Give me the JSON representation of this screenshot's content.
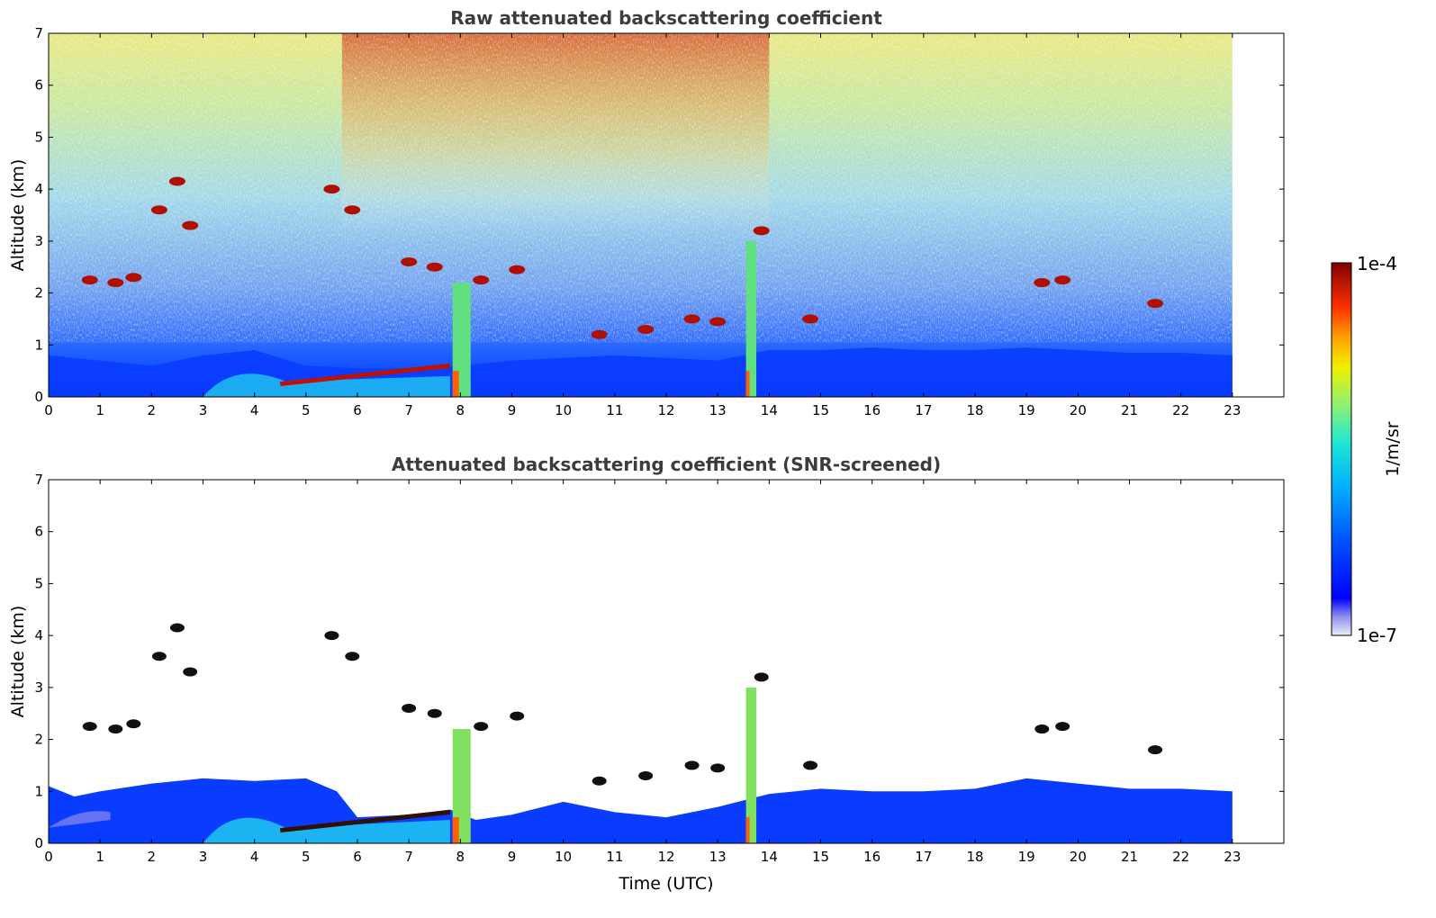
{
  "chart_data": [
    {
      "type": "heatmap",
      "title": "Raw attenuated backscattering coefficient",
      "xlabel": "",
      "ylabel": "Altitude (km)",
      "xlim": [
        0,
        24
      ],
      "ylim": [
        0,
        7
      ],
      "xticks": [
        "0",
        "1",
        "2",
        "3",
        "4",
        "5",
        "6",
        "7",
        "8",
        "9",
        "10",
        "11",
        "12",
        "13",
        "14",
        "15",
        "16",
        "17",
        "18",
        "19",
        "20",
        "21",
        "22",
        "23"
      ],
      "yticks": [
        "0",
        "1",
        "2",
        "3",
        "4",
        "5",
        "6",
        "7"
      ],
      "data_end_hour": 23,
      "layers": [
        {
          "name": "boundary-layer",
          "hours": [
            0,
            1,
            2,
            3,
            4,
            5,
            6,
            7,
            8,
            9,
            10,
            11,
            12,
            13,
            14,
            15,
            16,
            17,
            18,
            19,
            20,
            21,
            22,
            23
          ],
          "top_km": [
            0.8,
            0.7,
            0.6,
            0.8,
            0.9,
            0.6,
            0.55,
            0.55,
            0.6,
            0.7,
            0.75,
            0.8,
            0.75,
            0.7,
            0.9,
            0.9,
            0.95,
            0.9,
            0.9,
            0.95,
            0.9,
            0.85,
            0.85,
            0.8
          ]
        },
        {
          "name": "aerosol-layer",
          "t_start": 4.5,
          "t_end": 7.8,
          "alt_start_km": 0.25,
          "alt_end_km": 0.6
        },
        {
          "name": "precipitation-1",
          "t_start": 7.85,
          "t_end": 8.2,
          "alt_top_km": 2.2
        },
        {
          "name": "precipitation-2",
          "t_start": 13.55,
          "t_end": 13.75,
          "alt_top_km": 3.0
        }
      ],
      "cloud_features": [
        {
          "t": 2.5,
          "alt_km": 4.15
        },
        {
          "t": 2.15,
          "alt_km": 3.6
        },
        {
          "t": 2.75,
          "alt_km": 3.3
        },
        {
          "t": 0.8,
          "alt_km": 2.25
        },
        {
          "t": 1.3,
          "alt_km": 2.2
        },
        {
          "t": 1.65,
          "alt_km": 2.3
        },
        {
          "t": 5.5,
          "alt_km": 4.0
        },
        {
          "t": 5.9,
          "alt_km": 3.6
        },
        {
          "t": 7.0,
          "alt_km": 2.6
        },
        {
          "t": 7.5,
          "alt_km": 2.5
        },
        {
          "t": 8.4,
          "alt_km": 2.25
        },
        {
          "t": 9.1,
          "alt_km": 2.45
        },
        {
          "t": 10.7,
          "alt_km": 1.2
        },
        {
          "t": 11.6,
          "alt_km": 1.3
        },
        {
          "t": 12.5,
          "alt_km": 1.5
        },
        {
          "t": 13.0,
          "alt_km": 1.45
        },
        {
          "t": 13.85,
          "alt_km": 3.2
        },
        {
          "t": 14.8,
          "alt_km": 1.5
        },
        {
          "t": 19.3,
          "alt_km": 2.2
        },
        {
          "t": 19.7,
          "alt_km": 2.25
        },
        {
          "t": 21.5,
          "alt_km": 1.8
        }
      ]
    },
    {
      "type": "heatmap",
      "title": "Attenuated backscattering coefficient (SNR-screened)",
      "xlabel": "Time (UTC)",
      "ylabel": "Altitude (km)",
      "xlim": [
        0,
        24
      ],
      "ylim": [
        0,
        7
      ],
      "xticks": [
        "0",
        "1",
        "2",
        "3",
        "4",
        "5",
        "6",
        "7",
        "8",
        "9",
        "10",
        "11",
        "12",
        "13",
        "14",
        "15",
        "16",
        "17",
        "18",
        "19",
        "20",
        "21",
        "22",
        "23"
      ],
      "yticks": [
        "0",
        "1",
        "2",
        "3",
        "4",
        "5",
        "6",
        "7"
      ],
      "data_end_hour": 23,
      "screened_top_km": [
        {
          "t": 0,
          "km": 1.1
        },
        {
          "t": 0.5,
          "km": 0.9
        },
        {
          "t": 1,
          "km": 1.0
        },
        {
          "t": 2,
          "km": 1.15
        },
        {
          "t": 3,
          "km": 1.25
        },
        {
          "t": 4,
          "km": 1.2
        },
        {
          "t": 5,
          "km": 1.25
        },
        {
          "t": 5.6,
          "km": 1.0
        },
        {
          "t": 6,
          "km": 0.5
        },
        {
          "t": 7,
          "km": 0.55
        },
        {
          "t": 7.8,
          "km": 0.65
        },
        {
          "t": 8.3,
          "km": 0.45
        },
        {
          "t": 9,
          "km": 0.55
        },
        {
          "t": 10,
          "km": 0.8
        },
        {
          "t": 11,
          "km": 0.6
        },
        {
          "t": 12,
          "km": 0.5
        },
        {
          "t": 13,
          "km": 0.7
        },
        {
          "t": 14,
          "km": 0.95
        },
        {
          "t": 15,
          "km": 1.05
        },
        {
          "t": 16,
          "km": 1.0
        },
        {
          "t": 17,
          "km": 1.0
        },
        {
          "t": 18,
          "km": 1.05
        },
        {
          "t": 19,
          "km": 1.25
        },
        {
          "t": 20,
          "km": 1.15
        },
        {
          "t": 21,
          "km": 1.05
        },
        {
          "t": 22,
          "km": 1.05
        },
        {
          "t": 23,
          "km": 1.0
        }
      ]
    }
  ],
  "colorbar": {
    "label": "1/m/sr",
    "min_label": "1e-7",
    "max_label": "1e-4",
    "colors": [
      "#e8e8f8",
      "#b8b8f0",
      "#8080f0",
      "#0000ff",
      "#0040ff",
      "#0080ff",
      "#00c0ff",
      "#00e8e0",
      "#40f0a0",
      "#a0f060",
      "#f0f000",
      "#ffc000",
      "#ff8000",
      "#ff3000",
      "#c00000",
      "#800000"
    ]
  }
}
